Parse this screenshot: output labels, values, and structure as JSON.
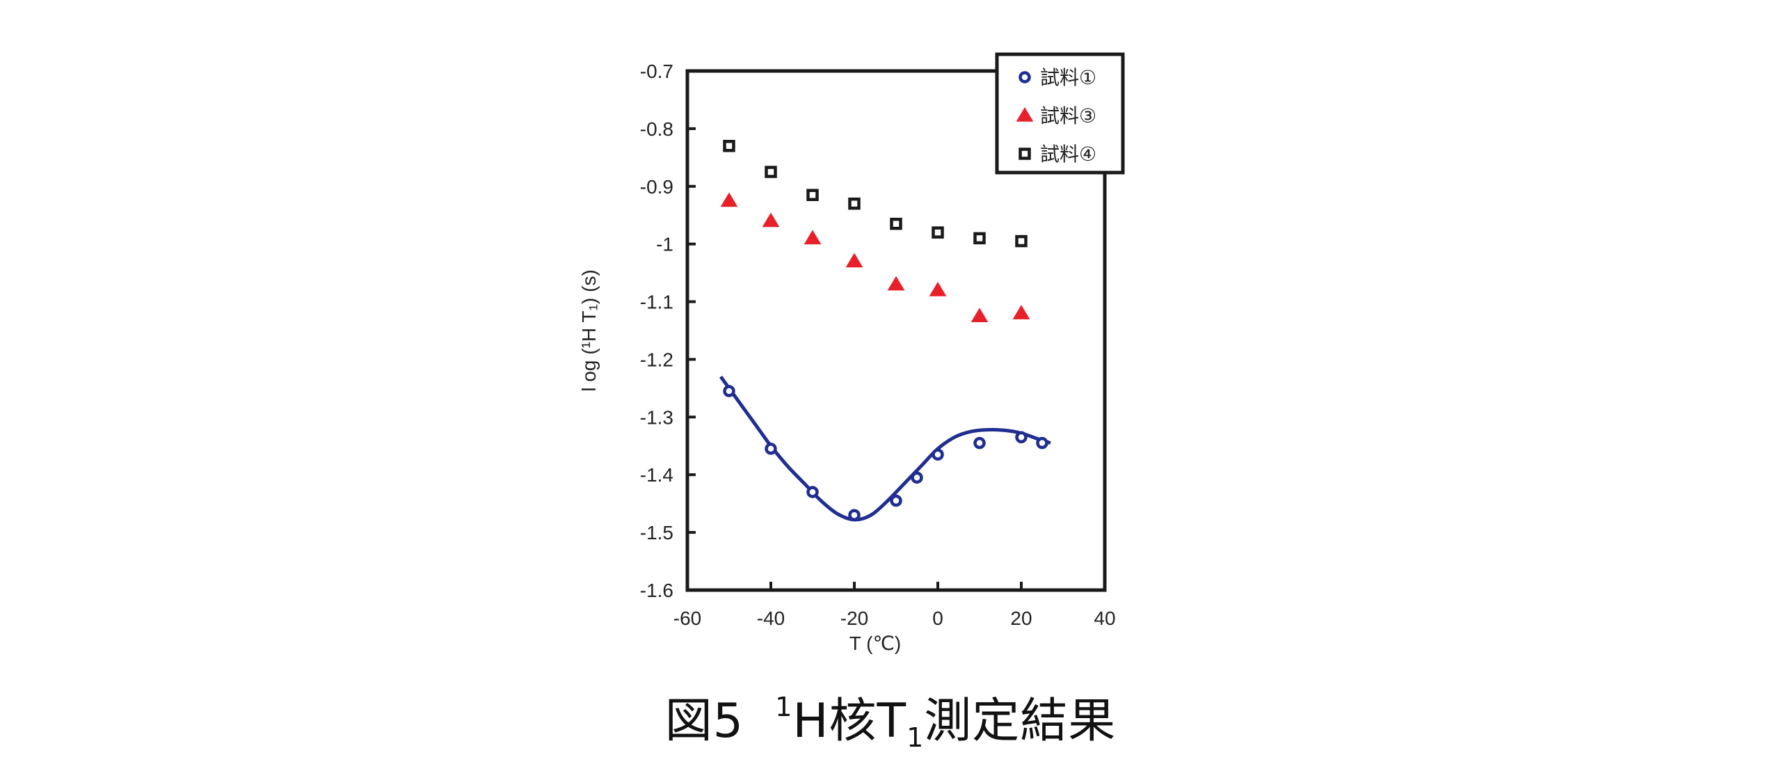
{
  "chart_data": {
    "type": "scatter",
    "xlabel": "T (℃)",
    "ylabel": "l og (¹H T₁) (s)",
    "xlim": [
      -60,
      40
    ],
    "ylim": [
      -1.6,
      -0.7
    ],
    "x_ticks": [
      "-60",
      "-40",
      "-20",
      "0",
      "20",
      "40"
    ],
    "y_ticks": [
      "-0.7",
      "-0.8",
      "-0.9",
      "-1",
      "-1.1",
      "-1.2",
      "-1.3",
      "-1.4",
      "-1.5",
      "-1.6"
    ],
    "legend_position": "top-right",
    "grid": false,
    "series": [
      {
        "name": "試料①",
        "marker": "circle",
        "color": "#1f2e8f",
        "x": [
          -50,
          -40,
          -30,
          -20,
          -10,
          -5,
          0,
          10,
          20,
          25
        ],
        "y": [
          -1.255,
          -1.355,
          -1.43,
          -1.47,
          -1.445,
          -1.405,
          -1.365,
          -1.345,
          -1.335,
          -1.345
        ],
        "trend_curve": {
          "x": [
            -52,
            -48,
            -44,
            -40,
            -36,
            -32,
            -28,
            -24,
            -20,
            -16,
            -12,
            -8,
            -4,
            0,
            4,
            8,
            12,
            16,
            20,
            24,
            27
          ],
          "y": [
            -1.23,
            -1.27,
            -1.31,
            -1.35,
            -1.385,
            -1.415,
            -1.445,
            -1.468,
            -1.478,
            -1.47,
            -1.445,
            -1.415,
            -1.385,
            -1.355,
            -1.335,
            -1.325,
            -1.322,
            -1.323,
            -1.328,
            -1.338,
            -1.345
          ]
        }
      },
      {
        "name": "試料③",
        "marker": "triangle",
        "color": "#e8202a",
        "x": [
          -50,
          -40,
          -30,
          -20,
          -10,
          0,
          10,
          20
        ],
        "y": [
          -0.925,
          -0.96,
          -0.99,
          -1.03,
          -1.07,
          -1.08,
          -1.125,
          -1.12
        ]
      },
      {
        "name": "試料④",
        "marker": "square",
        "color": "#1a1a1a",
        "x": [
          -50,
          -40,
          -30,
          -20,
          -10,
          0,
          10,
          20
        ],
        "y": [
          -0.83,
          -0.875,
          -0.915,
          -0.93,
          -0.965,
          -0.98,
          -0.99,
          -0.995
        ]
      }
    ]
  },
  "caption": {
    "prefix": "図5",
    "superscript": "1",
    "middle": "H核T",
    "subscript": "1",
    "suffix": "測定結果"
  }
}
